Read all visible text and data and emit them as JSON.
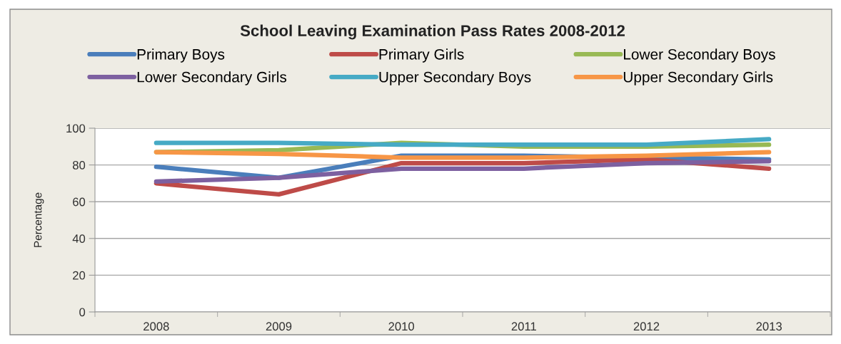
{
  "chart_data": {
    "type": "line",
    "title": "School Leaving Examination Pass Rates 2008-2012",
    "ylabel": "Percentage",
    "categories": [
      "2008",
      "2009",
      "2010",
      "2011",
      "2012",
      "2013"
    ],
    "series": [
      {
        "name": "Primary Boys",
        "color": "#4a7ebb",
        "values": [
          79,
          73,
          85,
          85,
          84,
          83
        ]
      },
      {
        "name": "Primary Girls",
        "color": "#be4b48",
        "values": [
          70,
          64,
          81,
          81,
          83,
          78
        ]
      },
      {
        "name": "Lower Secondary Boys",
        "color": "#98b954",
        "values": [
          87,
          88,
          92,
          90,
          90,
          91
        ]
      },
      {
        "name": "Lower Secondary Girls",
        "color": "#7d60a0",
        "values": [
          71,
          73,
          78,
          78,
          81,
          82
        ]
      },
      {
        "name": "Upper Secondary Boys",
        "color": "#46aac5",
        "values": [
          92,
          92,
          91,
          91,
          91,
          94
        ]
      },
      {
        "name": "Upper Secondary Girls",
        "color": "#f79646",
        "values": [
          87,
          86,
          84,
          84,
          85,
          87
        ]
      }
    ],
    "ylim": [
      0,
      100
    ],
    "yticks": [
      0,
      20,
      40,
      60,
      80,
      100
    ],
    "grid": "y",
    "legend": "top",
    "line_style": "solid"
  }
}
